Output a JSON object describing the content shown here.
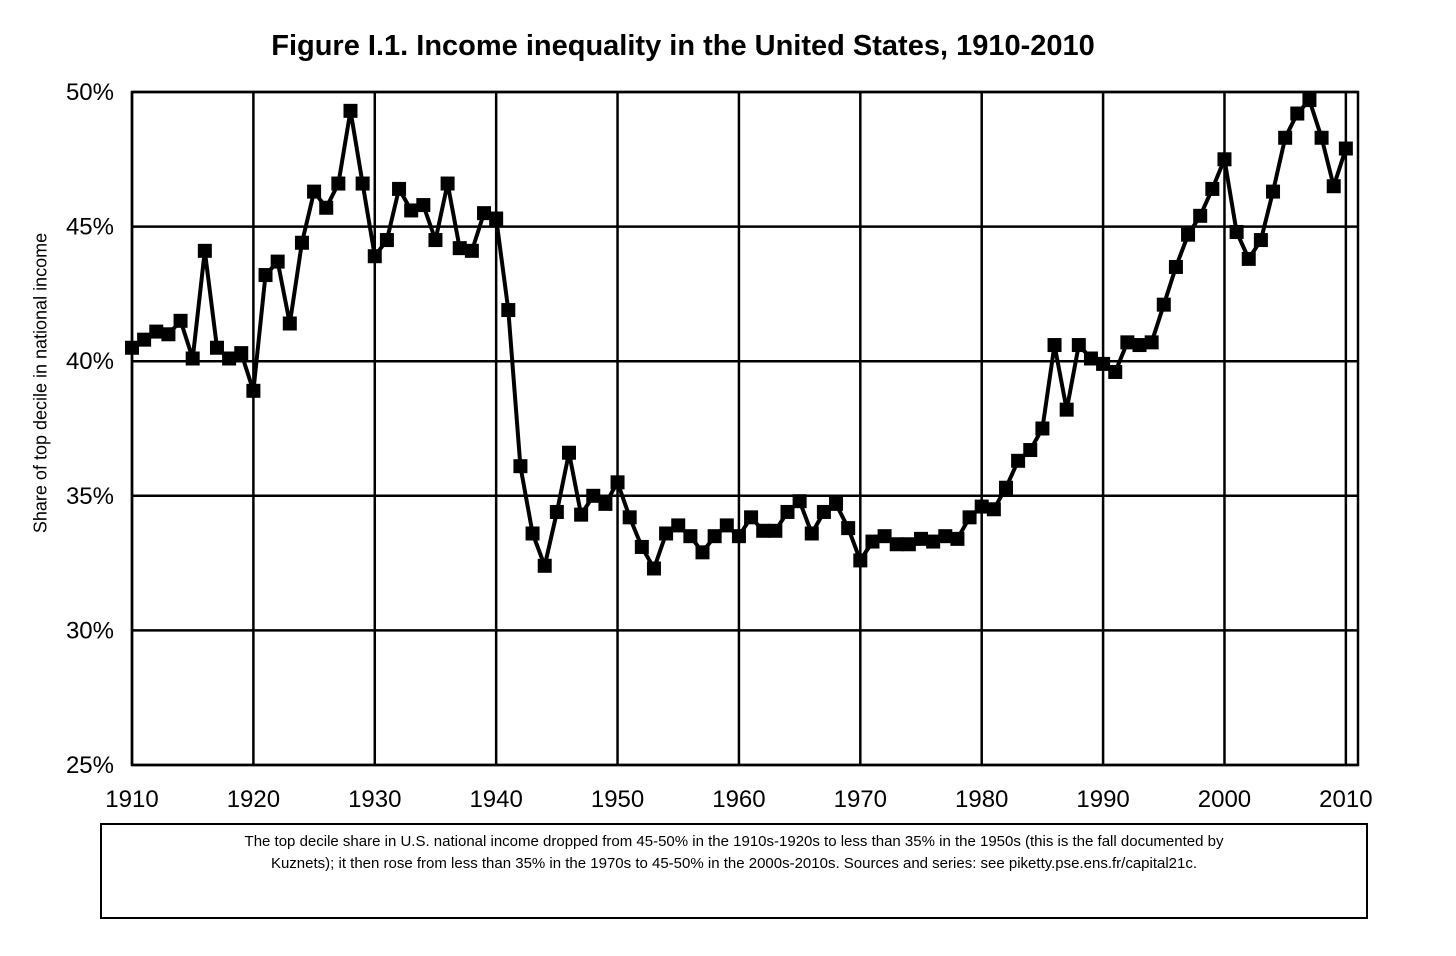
{
  "chart_data": {
    "type": "line",
    "title": "Figure I.1. Income inequality in the United States, 1910-2010",
    "ylabel": "Share of top decile in national income",
    "xlabel": "",
    "xlim": [
      1910,
      2011
    ],
    "ylim": [
      25,
      50
    ],
    "x_ticks": [
      1910,
      1920,
      1930,
      1940,
      1950,
      1960,
      1970,
      1980,
      1990,
      2000,
      2010
    ],
    "x_tick_labels": [
      "1910",
      "1920",
      "1930",
      "1940",
      "1950",
      "1960",
      "1970",
      "1980",
      "1990",
      "2000",
      "2010"
    ],
    "y_ticks": [
      25,
      30,
      35,
      40,
      45,
      50
    ],
    "y_tick_labels": [
      "25%",
      "30%",
      "35%",
      "40%",
      "45%",
      "50%"
    ],
    "grid": true,
    "series": [
      {
        "marker": "square",
        "color": "#000000",
        "x": [
          1910,
          1911,
          1912,
          1913,
          1914,
          1915,
          1916,
          1917,
          1918,
          1919,
          1920,
          1921,
          1922,
          1923,
          1924,
          1925,
          1926,
          1927,
          1928,
          1929,
          1930,
          1931,
          1932,
          1933,
          1934,
          1935,
          1936,
          1937,
          1938,
          1939,
          1940,
          1941,
          1942,
          1943,
          1944,
          1945,
          1946,
          1947,
          1948,
          1949,
          1950,
          1951,
          1952,
          1953,
          1954,
          1955,
          1956,
          1957,
          1958,
          1959,
          1960,
          1961,
          1962,
          1963,
          1964,
          1965,
          1966,
          1967,
          1968,
          1969,
          1970,
          1971,
          1972,
          1973,
          1974,
          1975,
          1976,
          1977,
          1978,
          1979,
          1980,
          1981,
          1982,
          1983,
          1984,
          1985,
          1986,
          1987,
          1988,
          1989,
          1990,
          1991,
          1992,
          1993,
          1994,
          1995,
          1996,
          1997,
          1998,
          1999,
          2000,
          2001,
          2002,
          2003,
          2004,
          2005,
          2006,
          2007,
          2008,
          2009,
          2010
        ],
        "values": [
          40.5,
          40.8,
          41.1,
          41.0,
          41.5,
          40.1,
          44.1,
          40.5,
          40.1,
          40.3,
          38.9,
          43.2,
          43.7,
          41.4,
          44.4,
          46.3,
          45.7,
          46.6,
          49.3,
          46.6,
          43.9,
          44.5,
          46.4,
          45.6,
          45.8,
          44.5,
          46.6,
          44.2,
          44.1,
          45.5,
          45.3,
          41.9,
          36.1,
          33.6,
          32.4,
          34.4,
          36.6,
          34.3,
          35.0,
          34.7,
          35.5,
          34.2,
          33.1,
          32.3,
          33.6,
          33.9,
          33.5,
          32.9,
          33.5,
          33.9,
          33.5,
          34.2,
          33.7,
          33.7,
          34.4,
          34.8,
          33.6,
          34.4,
          34.7,
          33.8,
          32.6,
          33.3,
          33.5,
          33.2,
          33.2,
          33.4,
          33.3,
          33.5,
          33.4,
          34.2,
          34.6,
          34.5,
          35.3,
          36.3,
          36.7,
          37.5,
          40.6,
          38.2,
          40.6,
          40.1,
          39.9,
          39.6,
          40.7,
          40.6,
          40.7,
          42.1,
          43.5,
          44.7,
          45.4,
          46.4,
          47.5,
          44.8,
          43.8,
          44.5,
          46.3,
          48.3,
          49.2,
          49.7,
          48.3,
          46.5,
          47.9
        ]
      }
    ]
  },
  "caption": {
    "line1": "The top decile share in U.S. national income dropped from 45-50% in the 1910s-1920s to less than 35% in the 1950s (this is the fall documented by",
    "line2": "Kuznets); it then rose from less than 35% in the 1970s to 45-50% in the 2000s-2010s. Sources and series: see piketty.pse.ens.fr/capital21c."
  }
}
